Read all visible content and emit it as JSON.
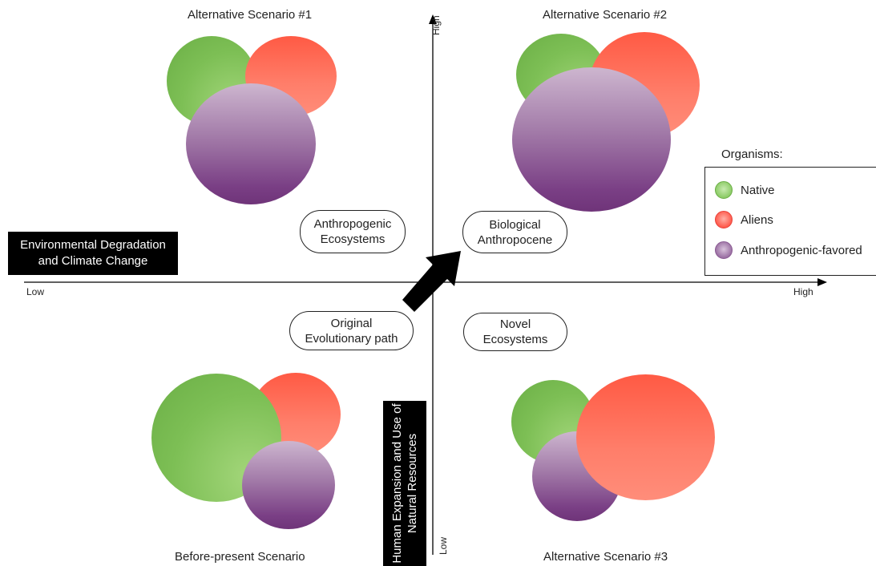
{
  "axes": {
    "x_axis": {
      "low_label": "Low",
      "high_label": "High",
      "title": "Environmental Degradation and Climate Change"
    },
    "y_axis": {
      "low_label": "Low",
      "high_label": "High",
      "title": "Human Expansion and Use of Natural Resources"
    }
  },
  "scenarios": {
    "top_left": {
      "title": "Alternative Scenario #1"
    },
    "top_right": {
      "title": "Alternative Scenario #2"
    },
    "bottom_left": {
      "title": "Before-present Scenario"
    },
    "bottom_right": {
      "title": "Alternative Scenario #3"
    }
  },
  "quadrant_labels": {
    "top_left": "Anthropogenic Ecosystems",
    "top_right": "Biological Anthropocene",
    "bottom_left": "Original Evolutionary path",
    "bottom_right": "Novel Ecosystems"
  },
  "legend": {
    "title": "Organisms:",
    "items": [
      {
        "label": "Native",
        "color": "#7dbf55"
      },
      {
        "label": "Aliens",
        "color": "#ff5a44"
      },
      {
        "label": "Anthropogenic-favored",
        "color": "#9b70a3"
      }
    ]
  },
  "colors": {
    "native": "#7dbf55",
    "aliens": "#ff5a44",
    "anthropogenic_favored": "#9b70a3",
    "axis": "#000000",
    "arrow": "#000000"
  }
}
